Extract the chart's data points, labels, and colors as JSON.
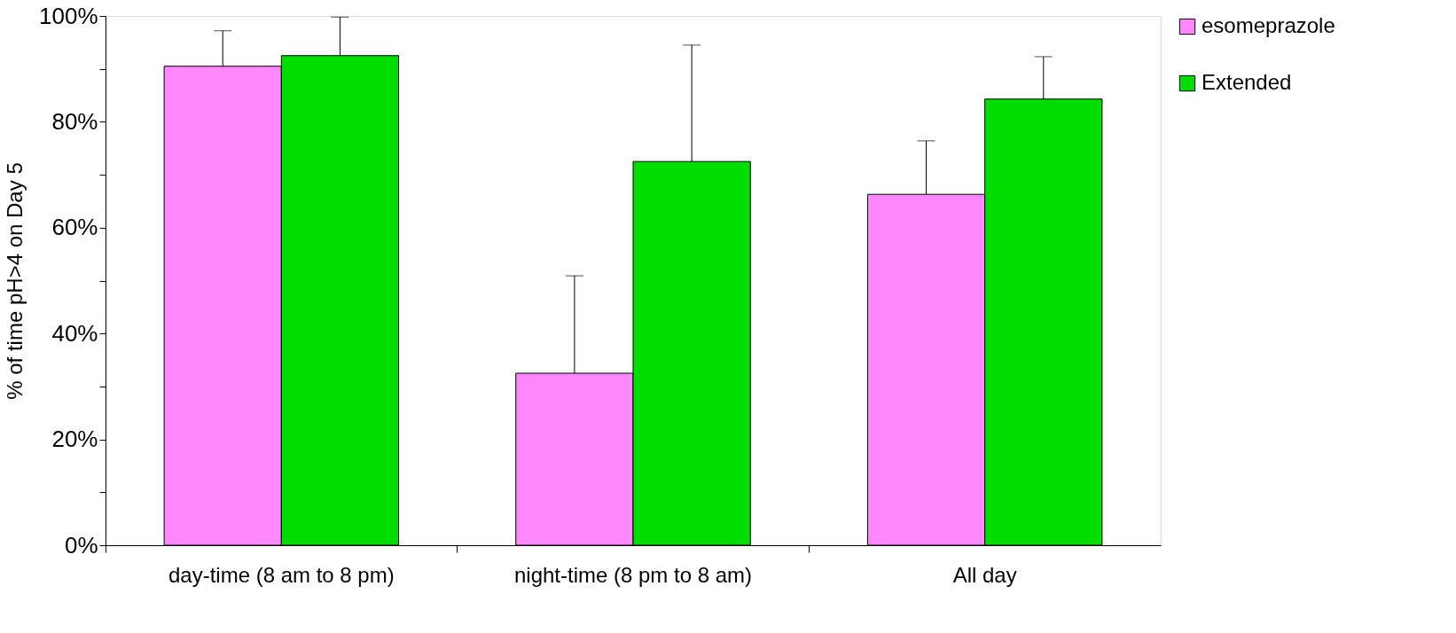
{
  "chart_data": {
    "type": "bar",
    "ylabel": "% of time pH>4 on Day 5",
    "categories": [
      "day-time (8 am to 8 pm)",
      "night-time (8 pm to 8 am)",
      "All day"
    ],
    "series": [
      {
        "name": "esomeprazole",
        "color": "#ff88ff",
        "values": [
          90.5,
          32.5,
          66.3
        ],
        "errors": [
          [
            90.5,
            97.2
          ],
          [
            32.5,
            50.9
          ],
          [
            66.3,
            76.4
          ]
        ]
      },
      {
        "name": "Extended",
        "color": "#00dd00",
        "values": [
          92.5,
          72.5,
          84.3
        ],
        "errors": [
          [
            92.5,
            99.8
          ],
          [
            72.5,
            94.5
          ],
          [
            84.3,
            92.3
          ]
        ]
      }
    ],
    "ylim": [
      0,
      100
    ],
    "yticks": [
      {
        "value": 0,
        "label": "0%"
      },
      {
        "value": 10,
        "label": null
      },
      {
        "value": 20,
        "label": "20%"
      },
      {
        "value": 30,
        "label": null
      },
      {
        "value": 40,
        "label": "40%"
      },
      {
        "value": 50,
        "label": null
      },
      {
        "value": 60,
        "label": "60%"
      },
      {
        "value": 70,
        "label": null
      },
      {
        "value": 80,
        "label": "80%"
      },
      {
        "value": 90,
        "label": null
      },
      {
        "value": 100,
        "label": "100%"
      }
    ],
    "grid": false,
    "legend": "right"
  }
}
